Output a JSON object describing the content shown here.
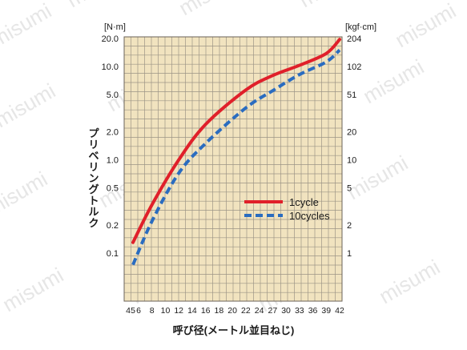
{
  "watermark": "misumi",
  "chart_data": {
    "type": "line",
    "ylabel": "プリベリングトルク",
    "xlabel": "呼び径(メートル並目ねじ)",
    "y_unit_left": "[N·m]",
    "y_unit_right": "[kgf·cm]",
    "y_scale": "log",
    "ylim": [
      0.05,
      20
    ],
    "y_ticks_left": [
      {
        "value": 20,
        "label": "20.0"
      },
      {
        "value": 10,
        "label": "10.0"
      },
      {
        "value": 5,
        "label": "5.0"
      },
      {
        "value": 2,
        "label": "2.0"
      },
      {
        "value": 1,
        "label": "1.0"
      },
      {
        "value": 0.5,
        "label": "0.5"
      },
      {
        "value": 0.2,
        "label": "0.2"
      },
      {
        "value": 0.1,
        "label": "0.1"
      }
    ],
    "y_ticks_right": [
      {
        "value": 20,
        "label": "204"
      },
      {
        "value": 10,
        "label": "102"
      },
      {
        "value": 5,
        "label": "51"
      },
      {
        "value": 2,
        "label": "20"
      },
      {
        "value": 1,
        "label": "10"
      },
      {
        "value": 0.5,
        "label": "5"
      },
      {
        "value": 0.2,
        "label": "2"
      },
      {
        "value": 0.1,
        "label": "1"
      }
    ],
    "x_ticks": [
      "4",
      "5",
      "6",
      "8",
      "10",
      "12",
      "14",
      "16",
      "18",
      "20",
      "22",
      "24",
      "27",
      "30",
      "33",
      "36",
      "39",
      "42"
    ],
    "grid": true,
    "legend_position": "center-right",
    "series": [
      {
        "name": "1cycle",
        "color": "#e0202a",
        "dash": "solid",
        "points": [
          [
            5,
            0.13
          ],
          [
            8,
            0.33
          ],
          [
            12,
            1.0
          ],
          [
            16,
            2.4
          ],
          [
            22,
            5.6
          ],
          [
            27,
            8.0
          ],
          [
            33,
            10.3
          ],
          [
            39,
            13.8
          ],
          [
            42,
            19.5
          ]
        ]
      },
      {
        "name": "10cycles",
        "color": "#2a6cc0",
        "dash": "dashed",
        "points": [
          [
            5,
            0.075
          ],
          [
            8,
            0.22
          ],
          [
            12,
            0.72
          ],
          [
            16,
            1.5
          ],
          [
            22,
            3.6
          ],
          [
            27,
            5.5
          ],
          [
            33,
            8.2
          ],
          [
            39,
            11.2
          ],
          [
            42,
            15.0
          ]
        ]
      }
    ]
  }
}
